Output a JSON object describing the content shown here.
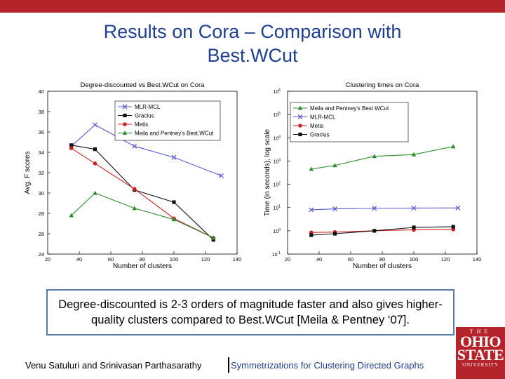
{
  "colors": {
    "accent": "#b5232b",
    "title": "#1f3f8f",
    "logo_bg": "#b5232b"
  },
  "slide": {
    "title_line1": "Results on Cora – Comparison with",
    "title_line2": "Best.WCut",
    "callout": "Degree-discounted is 2-3 orders of magnitude faster and also gives higher-quality clusters compared to Best.WCut [Meila & Pentney ‘07].",
    "footer_author": "Venu Satuluri and Srinivasan Parthasarathy",
    "footer_sep": "|",
    "footer_talk": "Symmetrizations for Clustering Directed Graphs"
  },
  "logo": {
    "the": "THE",
    "line1": "OHIO",
    "line2": "STATE",
    "uni": "UNIVERSITY"
  },
  "chart_data": [
    {
      "type": "line",
      "title": "Degree-discounted vs Best.WCut on Cora",
      "xlabel": "Number of clusters",
      "ylabel": "Avg. F scores",
      "xlim": [
        20,
        140
      ],
      "ylim": [
        24,
        40
      ],
      "xticks": [
        20,
        40,
        60,
        80,
        100,
        120,
        140
      ],
      "yticks": [
        24,
        26,
        28,
        30,
        32,
        34,
        36,
        38,
        40
      ],
      "legend_position": "top-left",
      "series": [
        {
          "name": "MLR-MCL",
          "color": "#5b5bd6",
          "marker": "x",
          "x": [
            35,
            50,
            75,
            100,
            130
          ],
          "y": [
            34.6,
            36.7,
            34.6,
            33.5,
            31.7
          ]
        },
        {
          "name": "Graclus",
          "color": "#111111",
          "marker": "s",
          "x": [
            35,
            50,
            75,
            100,
            125
          ],
          "y": [
            34.7,
            34.3,
            30.3,
            29.1,
            25.4
          ]
        },
        {
          "name": "Metis",
          "color": "#cc2222",
          "marker": "o",
          "x": [
            35,
            50,
            75,
            100,
            125
          ],
          "y": [
            34.4,
            32.9,
            30.4,
            27.5,
            25.6
          ]
        },
        {
          "name": "Meila and Pentney's Best.WCut",
          "color": "#2e8b2e",
          "marker": "^",
          "x": [
            35,
            50,
            75,
            100,
            125
          ],
          "y": [
            27.8,
            30.0,
            28.5,
            27.4,
            25.6
          ]
        }
      ]
    },
    {
      "type": "line",
      "title": "Clustering times on Cora",
      "xlabel": "Number of clusters",
      "ylabel": "Time (in seconds), log scale",
      "xlim": [
        20,
        140
      ],
      "ylim": [
        0.1,
        1000000
      ],
      "yscale": "log",
      "xticks": [
        20,
        40,
        60,
        80,
        100,
        120,
        140
      ],
      "yticks": [
        "10^-1",
        "10^0",
        "10^1",
        "10^2",
        "10^3",
        "10^4",
        "10^5",
        "10^6"
      ],
      "legend_position": "top-left",
      "series": [
        {
          "name": "Meila and Pentney's Best.WCut",
          "color": "#2e8b2e",
          "marker": "^",
          "x": [
            35,
            50,
            75,
            100,
            125
          ],
          "y": [
            450,
            650,
            1600,
            1900,
            4200
          ]
        },
        {
          "name": "MLR-MCL",
          "color": "#5b5bd6",
          "marker": "x",
          "x": [
            35,
            50,
            75,
            100,
            128
          ],
          "y": [
            8,
            8.8,
            9.3,
            9.5,
            9.6
          ]
        },
        {
          "name": "Metis",
          "color": "#cc2222",
          "marker": "o",
          "x": [
            35,
            50,
            75,
            100,
            125
          ],
          "y": [
            0.85,
            0.88,
            1.0,
            1.1,
            1.15
          ]
        },
        {
          "name": "Graclus",
          "color": "#111111",
          "marker": "s",
          "x": [
            35,
            50,
            75,
            100,
            125
          ],
          "y": [
            0.65,
            0.75,
            1.0,
            1.4,
            1.5
          ]
        }
      ]
    }
  ]
}
